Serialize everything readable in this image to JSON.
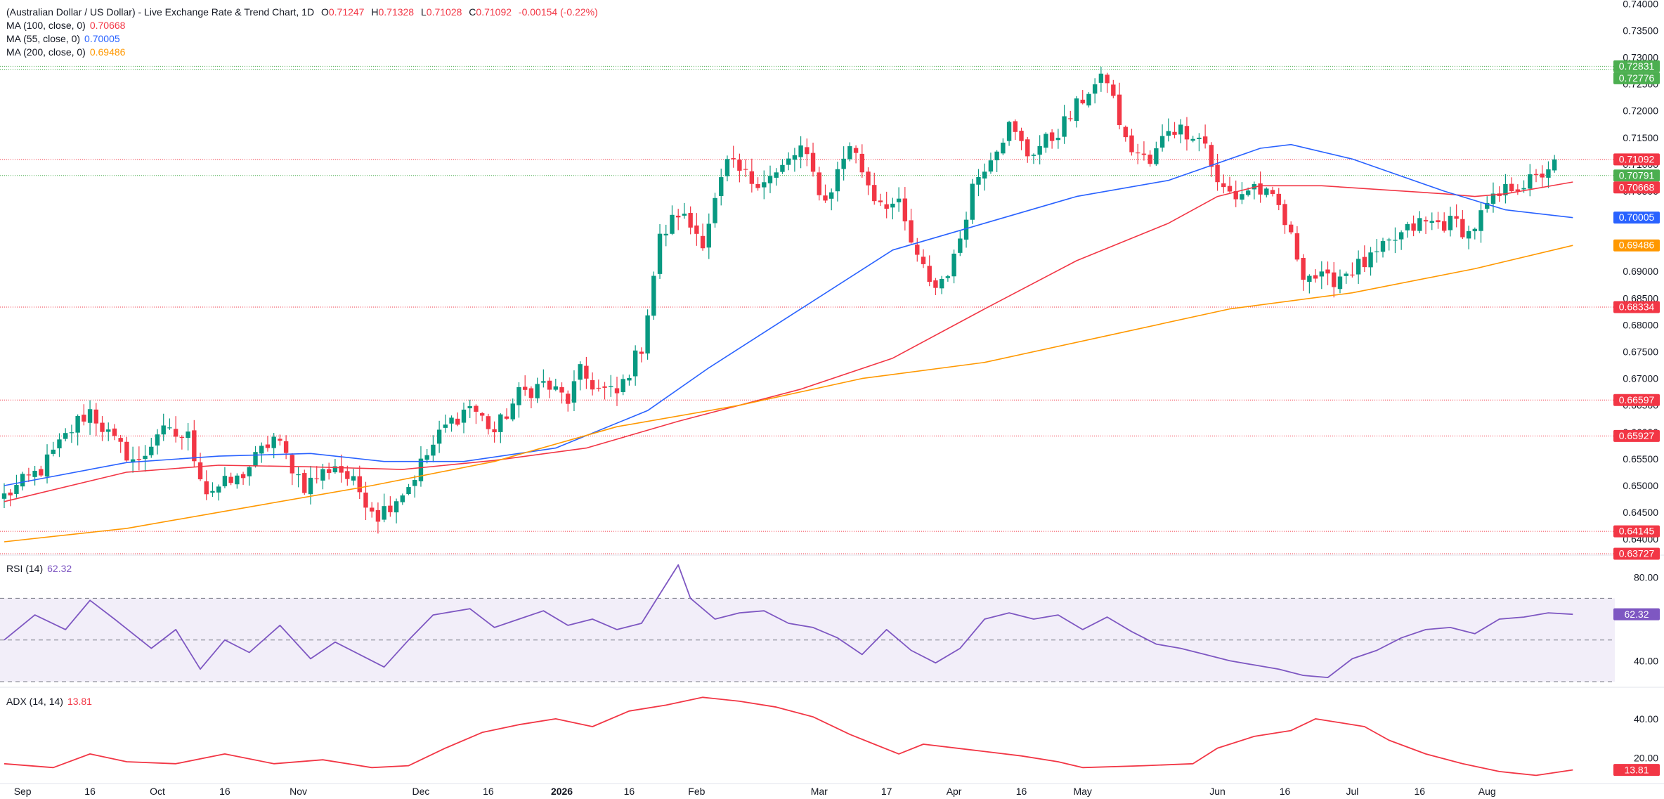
{
  "legend": {
    "title": "(Australian Dollar / US Dollar) - Live Exchange Rate & Trend Chart, 1D",
    "o_label": "O",
    "o": "0.71247",
    "h_label": "H",
    "h": "0.71328",
    "l_label": "L",
    "l": "0.71028",
    "c_label": "C",
    "c": "0.71092",
    "change": "-0.00154 (-0.22%)",
    "ma100": {
      "label": "MA (100, close, 0)",
      "value": "0.70668",
      "color": "#f23645"
    },
    "ma55": {
      "label": "MA (55, close, 0)",
      "value": "0.70005",
      "color": "#2962ff"
    },
    "ma200": {
      "label": "MA (200, close, 0)",
      "value": "0.69486",
      "color": "#ff9800"
    },
    "rsi": {
      "label": "RSI (14)",
      "value": "62.32",
      "color": "#7e57c2"
    },
    "adx": {
      "label": "ADX (14, 14)",
      "value": "13.81",
      "color": "#f23645"
    }
  },
  "chart_data": {
    "type": "candlestick",
    "price_axis": {
      "ylim": [
        0.637,
        0.7407
      ],
      "ticks": [
        "0.74000",
        "0.73500",
        "0.73000",
        "0.72500",
        "0.72000",
        "0.71500",
        "0.71000",
        "0.70500",
        "0.70000",
        "0.69500",
        "0.69000",
        "0.68500",
        "0.68000",
        "0.67500",
        "0.67000",
        "0.66500",
        "0.66000",
        "0.65500",
        "0.65000",
        "0.64500",
        "0.64000"
      ]
    },
    "x_axis": {
      "labels": [
        {
          "t": "Sep",
          "i": 3
        },
        {
          "t": "16",
          "i": 14
        },
        {
          "t": "Oct",
          "i": 25
        },
        {
          "t": "16",
          "i": 36
        },
        {
          "t": "Nov",
          "i": 48
        },
        {
          "t": "Dec",
          "i": 68
        },
        {
          "t": "16",
          "i": 79
        },
        {
          "t": "2026",
          "i": 91
        },
        {
          "t": "16",
          "i": 102
        },
        {
          "t": "Feb",
          "i": 113
        },
        {
          "t": "Mar",
          "i": 133
        },
        {
          "t": "17",
          "i": 144
        },
        {
          "t": "Apr",
          "i": 155
        },
        {
          "t": "16",
          "i": 166
        },
        {
          "t": "May",
          "i": 176
        },
        {
          "t": "Jun",
          "i": 198
        },
        {
          "t": "16",
          "i": 209
        },
        {
          "t": "Jul",
          "i": 220
        },
        {
          "t": "16",
          "i": 231
        },
        {
          "t": "Aug",
          "i": 242
        }
      ]
    },
    "anchors": [
      [
        0,
        0.648
      ],
      [
        6,
        0.653
      ],
      [
        12,
        0.662
      ],
      [
        14,
        0.664
      ],
      [
        18,
        0.658
      ],
      [
        22,
        0.654
      ],
      [
        25,
        0.66
      ],
      [
        30,
        0.659
      ],
      [
        33,
        0.649
      ],
      [
        38,
        0.651
      ],
      [
        44,
        0.659
      ],
      [
        49,
        0.65
      ],
      [
        54,
        0.654
      ],
      [
        58,
        0.649
      ],
      [
        61,
        0.6445
      ],
      [
        66,
        0.65
      ],
      [
        68,
        0.654
      ],
      [
        72,
        0.661
      ],
      [
        76,
        0.665
      ],
      [
        80,
        0.66
      ],
      [
        84,
        0.667
      ],
      [
        88,
        0.669
      ],
      [
        92,
        0.666
      ],
      [
        94,
        0.671
      ],
      [
        97,
        0.668
      ],
      [
        100,
        0.667
      ],
      [
        104,
        0.676
      ],
      [
        107,
        0.696
      ],
      [
        110,
        0.701
      ],
      [
        114,
        0.696
      ],
      [
        118,
        0.71
      ],
      [
        122,
        0.707
      ],
      [
        126,
        0.708
      ],
      [
        130,
        0.713
      ],
      [
        134,
        0.703
      ],
      [
        138,
        0.714
      ],
      [
        142,
        0.704
      ],
      [
        146,
        0.702
      ],
      [
        149,
        0.692
      ],
      [
        152,
        0.687
      ],
      [
        155,
        0.692
      ],
      [
        158,
        0.706
      ],
      [
        161,
        0.712
      ],
      [
        164,
        0.717
      ],
      [
        167,
        0.712
      ],
      [
        171,
        0.715
      ],
      [
        174,
        0.719
      ],
      [
        177,
        0.724
      ],
      [
        180,
        0.726
      ],
      [
        183,
        0.714
      ],
      [
        187,
        0.71
      ],
      [
        190,
        0.717
      ],
      [
        194,
        0.716
      ],
      [
        196,
        0.714
      ],
      [
        198,
        0.706
      ],
      [
        201,
        0.704
      ],
      [
        204,
        0.706
      ],
      [
        208,
        0.702
      ],
      [
        212,
        0.69
      ],
      [
        216,
        0.688
      ],
      [
        219,
        0.69
      ],
      [
        223,
        0.692
      ],
      [
        227,
        0.696
      ],
      [
        231,
        0.699
      ],
      [
        234,
        0.699
      ],
      [
        237,
        0.699
      ],
      [
        239,
        0.697
      ],
      [
        242,
        0.702
      ],
      [
        246,
        0.706
      ],
      [
        250,
        0.707
      ],
      [
        253,
        0.711
      ]
    ],
    "series": [
      {
        "name": "MA (100, close, 0)",
        "color": "#f23645",
        "points": [
          [
            0,
            0.647
          ],
          [
            20,
            0.6525
          ],
          [
            35,
            0.6538
          ],
          [
            50,
            0.6535
          ],
          [
            65,
            0.653
          ],
          [
            80,
            0.6547
          ],
          [
            95,
            0.657
          ],
          [
            110,
            0.662
          ],
          [
            130,
            0.668
          ],
          [
            145,
            0.6738
          ],
          [
            160,
            0.683
          ],
          [
            175,
            0.692
          ],
          [
            190,
            0.699
          ],
          [
            198,
            0.704
          ],
          [
            205,
            0.706
          ],
          [
            215,
            0.706
          ],
          [
            235,
            0.7045
          ],
          [
            240,
            0.704
          ],
          [
            245,
            0.7045
          ],
          [
            256,
            0.7067
          ]
        ]
      },
      {
        "name": "MA (55, close, 0)",
        "color": "#2962ff",
        "points": [
          [
            0,
            0.65
          ],
          [
            20,
            0.6543
          ],
          [
            35,
            0.6555
          ],
          [
            50,
            0.656
          ],
          [
            62,
            0.6545
          ],
          [
            75,
            0.6545
          ],
          [
            90,
            0.657
          ],
          [
            105,
            0.664
          ],
          [
            115,
            0.672
          ],
          [
            130,
            0.683
          ],
          [
            145,
            0.694
          ],
          [
            160,
            0.699
          ],
          [
            175,
            0.704
          ],
          [
            190,
            0.707
          ],
          [
            205,
            0.713
          ],
          [
            210,
            0.7137
          ],
          [
            220,
            0.711
          ],
          [
            235,
            0.705
          ],
          [
            245,
            0.7015
          ],
          [
            256,
            0.70005
          ]
        ]
      },
      {
        "name": "MA (200, close, 0)",
        "color": "#ff9800",
        "points": [
          [
            0,
            0.6395
          ],
          [
            20,
            0.642
          ],
          [
            40,
            0.646
          ],
          [
            60,
            0.65
          ],
          [
            80,
            0.6545
          ],
          [
            100,
            0.661
          ],
          [
            120,
            0.665
          ],
          [
            140,
            0.67
          ],
          [
            160,
            0.673
          ],
          [
            180,
            0.678
          ],
          [
            200,
            0.683
          ],
          [
            220,
            0.686
          ],
          [
            240,
            0.6905
          ],
          [
            256,
            0.69486
          ]
        ]
      }
    ],
    "price_tags": [
      {
        "v": 0.72831,
        "t": "0.72831",
        "bg": "#4caf50"
      },
      {
        "v": 0.72776,
        "t": "0.72776",
        "bg": "#4caf50"
      },
      {
        "v": 0.71092,
        "t": "0.71092",
        "bg": "#f23645"
      },
      {
        "v": 0.70791,
        "t": "0.70791",
        "bg": "#4caf50"
      },
      {
        "v": 0.70668,
        "t": "0.70668",
        "bg": "#f23645"
      },
      {
        "v": 0.70005,
        "t": "0.70005",
        "bg": "#2962ff"
      },
      {
        "v": 0.69486,
        "t": "0.69486",
        "bg": "#ff9800"
      },
      {
        "v": 0.68334,
        "t": "0.68334",
        "bg": "#f23645"
      },
      {
        "v": 0.66597,
        "t": "0.66597",
        "bg": "#f23645"
      },
      {
        "v": 0.65927,
        "t": "0.65927",
        "bg": "#f23645"
      },
      {
        "v": 0.64145,
        "t": "0.64145",
        "bg": "#f23645"
      },
      {
        "v": 0.63727,
        "t": "0.63727",
        "bg": "#f23645"
      }
    ],
    "hlines": [
      {
        "v": 0.72831,
        "color": "#4caf50"
      },
      {
        "v": 0.72776,
        "color": "#4caf50"
      },
      {
        "v": 0.71092,
        "color": "#f23645"
      },
      {
        "v": 0.70791,
        "color": "#4caf50"
      },
      {
        "v": 0.68334,
        "color": "#f23645"
      },
      {
        "v": 0.66597,
        "color": "#f23645"
      },
      {
        "v": 0.65927,
        "color": "#f23645"
      },
      {
        "v": 0.64145,
        "color": "#f23645"
      },
      {
        "v": 0.63727,
        "color": "#f23645"
      }
    ],
    "rsi": {
      "ylim": [
        30,
        88
      ],
      "ticks": [
        "80.00",
        "40.00"
      ],
      "levels": [
        70,
        50,
        30
      ],
      "points": [
        [
          0,
          50
        ],
        [
          5,
          62
        ],
        [
          10,
          55
        ],
        [
          14,
          69
        ],
        [
          18,
          60
        ],
        [
          24,
          46
        ],
        [
          28,
          55
        ],
        [
          32,
          36
        ],
        [
          36,
          50
        ],
        [
          40,
          44
        ],
        [
          45,
          57
        ],
        [
          50,
          41
        ],
        [
          54,
          49
        ],
        [
          58,
          43
        ],
        [
          62,
          37
        ],
        [
          66,
          50
        ],
        [
          70,
          62
        ],
        [
          76,
          65
        ],
        [
          80,
          56
        ],
        [
          84,
          60
        ],
        [
          88,
          64
        ],
        [
          92,
          57
        ],
        [
          96,
          60
        ],
        [
          100,
          55
        ],
        [
          104,
          58
        ],
        [
          107,
          72
        ],
        [
          110,
          86
        ],
        [
          112,
          70
        ],
        [
          116,
          60
        ],
        [
          120,
          63
        ],
        [
          124,
          64
        ],
        [
          128,
          58
        ],
        [
          132,
          56
        ],
        [
          136,
          51
        ],
        [
          140,
          43
        ],
        [
          144,
          55
        ],
        [
          148,
          45
        ],
        [
          152,
          39
        ],
        [
          156,
          46
        ],
        [
          160,
          60
        ],
        [
          164,
          63
        ],
        [
          168,
          60
        ],
        [
          172,
          62
        ],
        [
          176,
          55
        ],
        [
          180,
          61
        ],
        [
          184,
          54
        ],
        [
          188,
          48
        ],
        [
          192,
          46
        ],
        [
          196,
          43
        ],
        [
          200,
          40
        ],
        [
          204,
          38
        ],
        [
          208,
          36
        ],
        [
          212,
          33
        ],
        [
          216,
          32
        ],
        [
          220,
          41
        ],
        [
          224,
          45
        ],
        [
          228,
          51
        ],
        [
          232,
          55
        ],
        [
          236,
          56
        ],
        [
          240,
          53
        ],
        [
          244,
          60
        ],
        [
          248,
          61
        ],
        [
          252,
          63
        ],
        [
          256,
          62.32
        ]
      ]
    },
    "adx": {
      "ylim": [
        9,
        54
      ],
      "ticks": [
        "40.00",
        "20.00"
      ],
      "points": [
        [
          0,
          17
        ],
        [
          8,
          15
        ],
        [
          14,
          22
        ],
        [
          20,
          18
        ],
        [
          28,
          17
        ],
        [
          36,
          22
        ],
        [
          44,
          17
        ],
        [
          52,
          19
        ],
        [
          60,
          15
        ],
        [
          66,
          16
        ],
        [
          72,
          25
        ],
        [
          78,
          33
        ],
        [
          84,
          37
        ],
        [
          90,
          40
        ],
        [
          96,
          36
        ],
        [
          102,
          44
        ],
        [
          108,
          47
        ],
        [
          114,
          51
        ],
        [
          120,
          49
        ],
        [
          126,
          46
        ],
        [
          132,
          41
        ],
        [
          138,
          32
        ],
        [
          142,
          27
        ],
        [
          146,
          22
        ],
        [
          150,
          27
        ],
        [
          158,
          24
        ],
        [
          166,
          21
        ],
        [
          172,
          18
        ],
        [
          176,
          15
        ],
        [
          186,
          16
        ],
        [
          194,
          17
        ],
        [
          198,
          25
        ],
        [
          204,
          31
        ],
        [
          210,
          34
        ],
        [
          214,
          40
        ],
        [
          218,
          38
        ],
        [
          222,
          36
        ],
        [
          226,
          29
        ],
        [
          232,
          22
        ],
        [
          238,
          17
        ],
        [
          244,
          13
        ],
        [
          250,
          11
        ],
        [
          256,
          13.81
        ]
      ]
    }
  }
}
